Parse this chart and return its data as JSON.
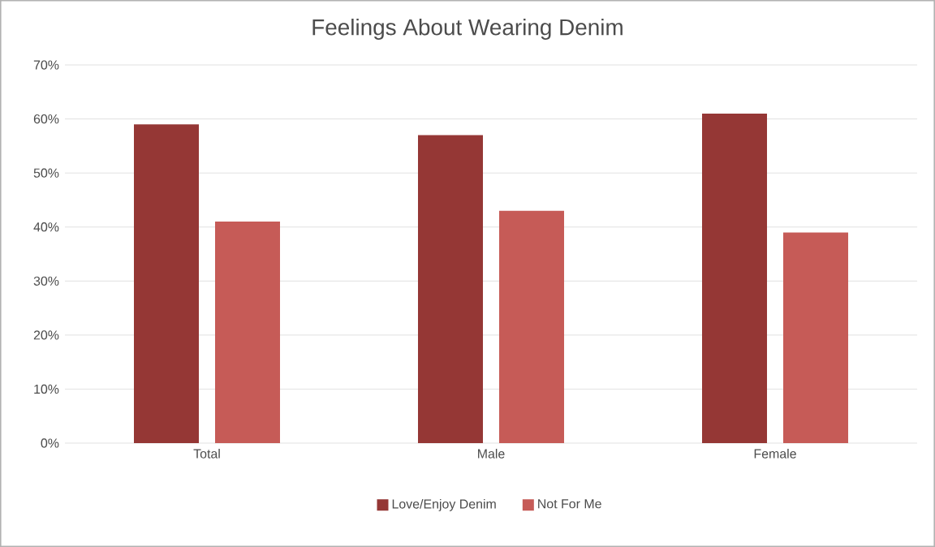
{
  "chart_data": {
    "type": "bar",
    "title": "Feelings About Wearing Denim",
    "categories": [
      "Total",
      "Male",
      "Female"
    ],
    "series": [
      {
        "name": "Love/Enjoy Denim",
        "color": "#953735",
        "values": [
          59,
          57,
          61
        ]
      },
      {
        "name": "Not For Me",
        "color": "#c65b57",
        "values": [
          41,
          43,
          39
        ]
      }
    ],
    "ylim": [
      0,
      70
    ],
    "yticks": [
      {
        "value": 0,
        "label": "0%"
      },
      {
        "value": 10,
        "label": "10%"
      },
      {
        "value": 20,
        "label": "20%"
      },
      {
        "value": 30,
        "label": "30%"
      },
      {
        "value": 40,
        "label": "40%"
      },
      {
        "value": 50,
        "label": "50%"
      },
      {
        "value": 60,
        "label": "60%"
      },
      {
        "value": 70,
        "label": "70%"
      }
    ],
    "grid": "y",
    "legend": "bottom"
  }
}
